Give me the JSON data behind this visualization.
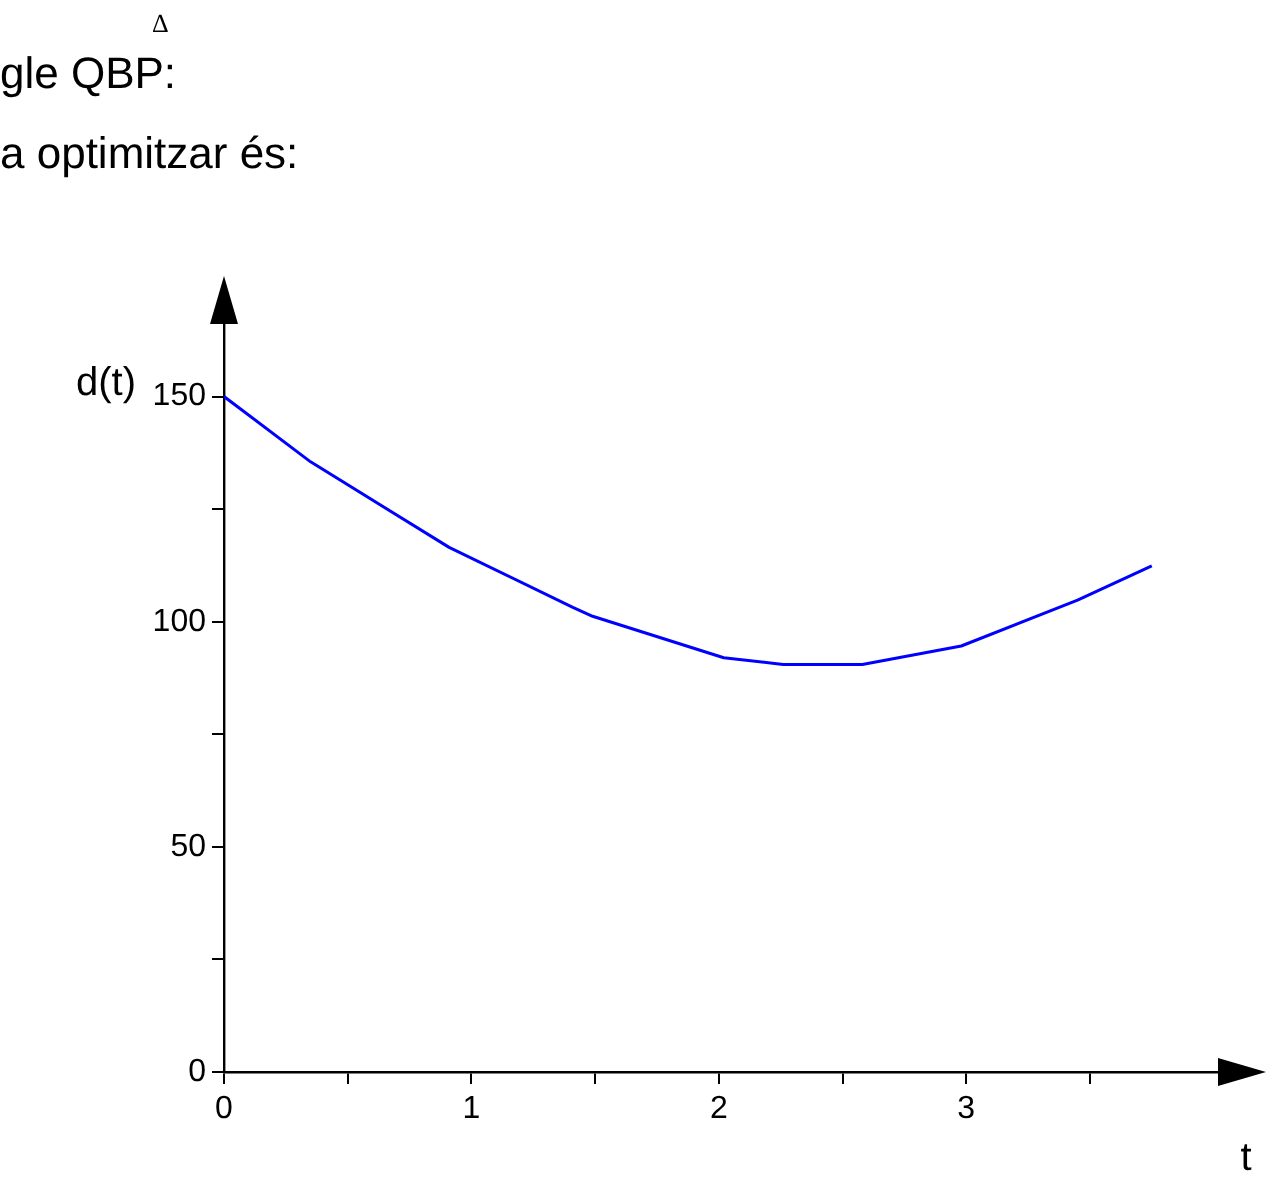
{
  "chart_data": {
    "type": "line",
    "xlabel": "t",
    "ylabel": "d(t)",
    "annotations": [
      "gle QBP:",
      "Δ",
      "a optimitzar és:"
    ],
    "x": [
      0,
      0.35,
      0.91,
      1.41,
      1.49,
      2.02,
      2.26,
      2.58,
      2.98,
      3.45,
      3.75
    ],
    "series": [
      {
        "color": "#0000ff",
        "values": [
          150,
          135.5,
          116.5,
          103.2,
          101.2,
          92,
          90.5,
          90.5,
          94.6,
          104.8,
          112.4
        ]
      }
    ],
    "xlim": [
      0,
      4.05
    ],
    "ylim": [
      0,
      167
    ],
    "xticks": [
      0,
      {
        "value": 0.5,
        "label": null
      },
      1,
      {
        "value": 1.5,
        "label": null
      },
      2,
      {
        "value": 2.5,
        "label": null
      },
      3,
      {
        "value": 3.5,
        "label": null
      }
    ],
    "yticks": [
      0,
      {
        "value": 25,
        "label": null
      },
      50,
      {
        "value": 75,
        "label": null
      },
      100,
      {
        "value": 125,
        "label": null
      },
      150
    ],
    "grid": false,
    "legend": false,
    "marker": "none",
    "line_style": "solid"
  }
}
